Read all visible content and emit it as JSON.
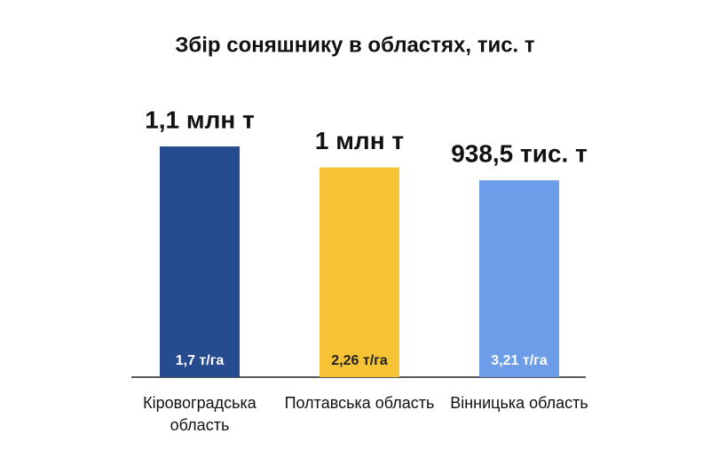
{
  "chart_data": {
    "type": "bar",
    "title": "Збір соняшнику в областях, тис. т",
    "categories": [
      "Кіровоградська область",
      "Полтавська область",
      "Вінницька область"
    ],
    "values": [
      1100,
      1000,
      938.5
    ],
    "value_labels": [
      "1,1 млн т",
      "1 млн т",
      "938,5 тис. т"
    ],
    "colors": [
      "#274b8f",
      "#f5c335",
      "#6d9ce8"
    ],
    "annotations": [
      "1,7 т/га",
      "2,26 т/га",
      "3,21 т/га"
    ],
    "annotation_colors": [
      "#ffffff",
      "#222222",
      "#ffffff"
    ]
  }
}
